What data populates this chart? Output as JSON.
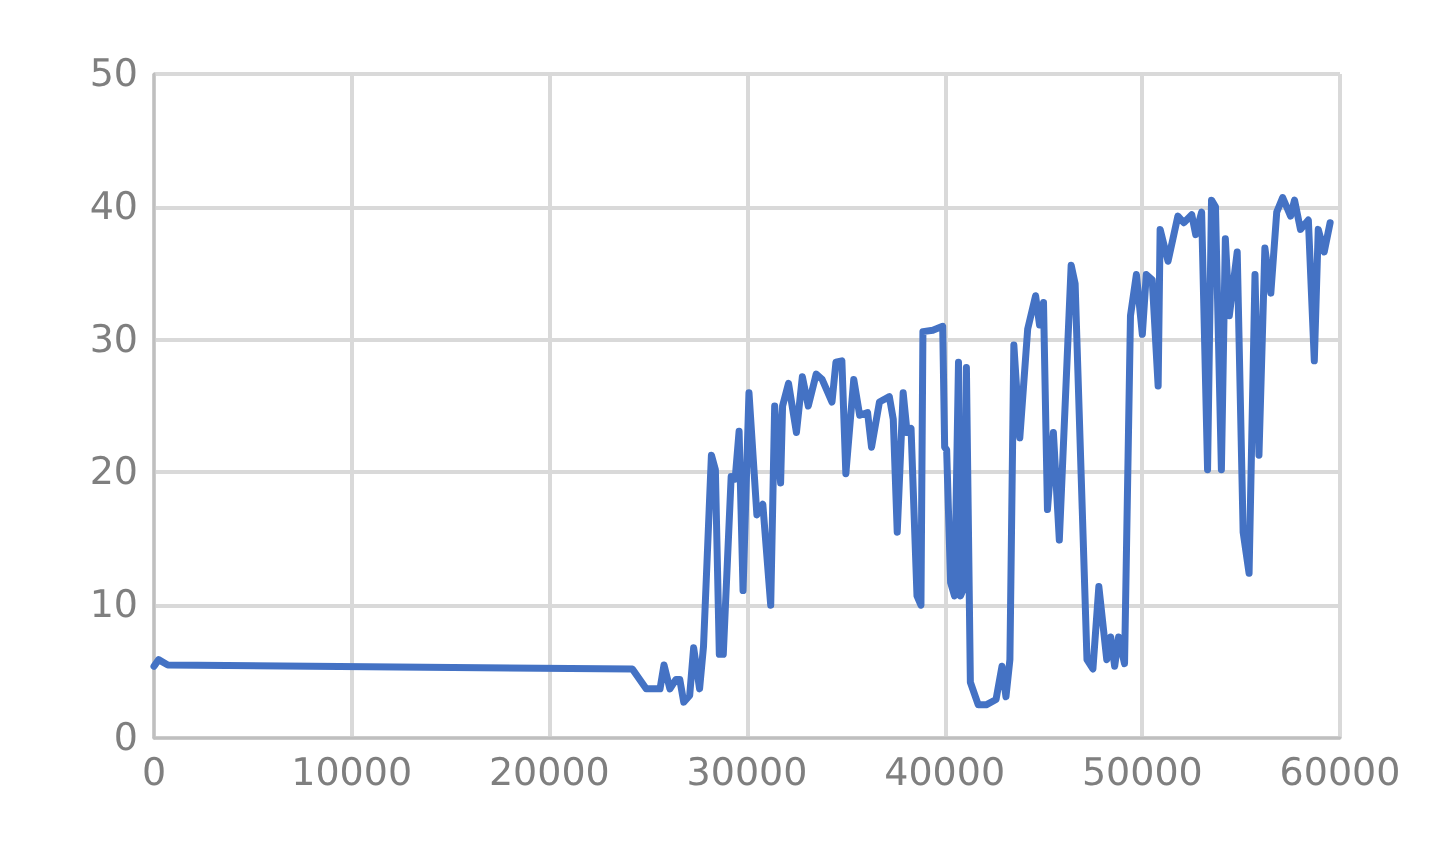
{
  "chart_data": {
    "type": "line",
    "x": [
      0,
      230,
      700,
      24200,
      24900,
      25600,
      25800,
      26100,
      26400,
      26600,
      26800,
      27100,
      27300,
      27600,
      27800,
      28200,
      28400,
      28600,
      28800,
      29200,
      29400,
      29600,
      29800,
      30100,
      30500,
      30800,
      31200,
      31400,
      31700,
      31800,
      32100,
      32500,
      32800,
      33100,
      33500,
      33800,
      34300,
      34500,
      34800,
      35000,
      35400,
      35700,
      36100,
      36300,
      36700,
      37200,
      37400,
      37600,
      37900,
      38100,
      38300,
      38600,
      38800,
      38900,
      39400,
      39900,
      40000,
      40100,
      40300,
      40500,
      40700,
      40800,
      41000,
      41100,
      41300,
      41700,
      42100,
      42600,
      42900,
      43100,
      43300,
      43500,
      43800,
      44200,
      44600,
      44800,
      45000,
      45200,
      45500,
      45800,
      46400,
      46600,
      47200,
      47500,
      47800,
      48200,
      48400,
      48600,
      48800,
      49100,
      49400,
      49700,
      50000,
      50200,
      50500,
      50800,
      50900,
      51300,
      51800,
      52100,
      52500,
      52700,
      53000,
      53300,
      53500,
      53700,
      54000,
      54200,
      54400,
      54800,
      55100,
      55400,
      55700,
      55900,
      56200,
      56500,
      56800,
      57100,
      57500,
      57700,
      58000,
      58400,
      58700,
      58900,
      59200,
      59500
    ],
    "series": [
      {
        "color": "#4472c4",
        "values": [
          5.4,
          5.9,
          5.5,
          5.2,
          3.7,
          3.7,
          5.5,
          3.7,
          4.4,
          4.4,
          2.7,
          3.2,
          6.8,
          3.7,
          6.9,
          21.3,
          20.2,
          6.3,
          6.3,
          19.7,
          19.5,
          23.1,
          11.1,
          26.0,
          16.8,
          17.6,
          10.0,
          25.0,
          19.2,
          25.0,
          26.7,
          23.0,
          27.2,
          25.0,
          27.4,
          27.0,
          25.3,
          28.3,
          28.4,
          19.9,
          27.0,
          24.3,
          24.5,
          21.9,
          25.3,
          25.7,
          24.0,
          15.5,
          26.0,
          23.0,
          23.3,
          10.7,
          10.0,
          30.6,
          30.7,
          31.0,
          21.9,
          21.7,
          11.7,
          10.7,
          28.3,
          10.7,
          11.4,
          27.9,
          4.2,
          2.5,
          2.5,
          2.9,
          5.4,
          3.1,
          5.9,
          29.6,
          22.6,
          30.8,
          33.3,
          31.1,
          32.8,
          17.2,
          23.0,
          14.9,
          35.6,
          34.2,
          5.9,
          5.2,
          11.4,
          5.9,
          7.6,
          5.4,
          7.6,
          5.6,
          31.8,
          34.9,
          30.4,
          34.9,
          34.5,
          26.5,
          38.3,
          35.9,
          39.3,
          38.8,
          39.4,
          37.9,
          39.6,
          20.2,
          40.5,
          40.0,
          20.2,
          37.6,
          31.8,
          36.6,
          15.5,
          12.4,
          34.9,
          21.3,
          36.9,
          33.5,
          39.6,
          40.7,
          39.3,
          40.5,
          38.3,
          39.0,
          28.4,
          38.3,
          36.6,
          38.8
        ]
      }
    ],
    "xlim": [
      0,
      60000
    ],
    "xticks": [
      0,
      10000,
      20000,
      30000,
      40000,
      50000,
      60000
    ],
    "ylim": [
      0,
      50
    ],
    "yticks": [
      0,
      10,
      20,
      30,
      40,
      50
    ],
    "grid": true,
    "marker": "none",
    "line_style": "solid"
  }
}
